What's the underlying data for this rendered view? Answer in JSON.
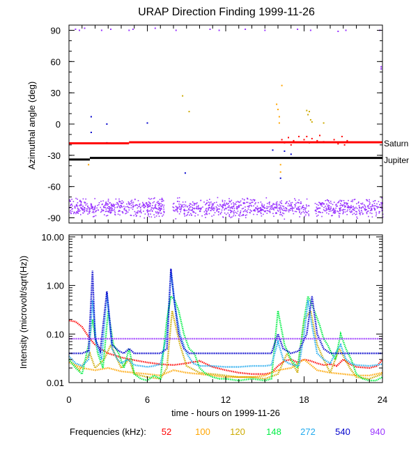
{
  "chart_data": [
    {
      "type": "scatter",
      "title": "URAP Direction Finding  1999-11-26",
      "ylabel": "Azimuthal angle (deg)",
      "xlabel": "",
      "xlim": [
        0,
        24
      ],
      "ylim": [
        -95,
        95
      ],
      "yticks": [
        90,
        60,
        30,
        0,
        -30,
        -60,
        -90
      ],
      "reference_lines": [
        {
          "name": "Saturn",
          "color": "#ff0000",
          "segments": [
            [
              0,
              4.6,
              -18.5
            ],
            [
              4.6,
              24,
              -17.5
            ]
          ]
        },
        {
          "name": "Jupiter",
          "color": "#000000",
          "segments": [
            [
              0,
              1.6,
              -34
            ],
            [
              1.6,
              24,
              -32.5
            ]
          ]
        }
      ],
      "series": [
        {
          "name": "940 kHz cluster (-70 to -93 deg)",
          "color": "#9933ff",
          "x_range": [
            0,
            24
          ],
          "y_range": [
            -93,
            -70
          ],
          "gaps": [
            [
              7.3,
              7.9
            ],
            [
              18.4,
              18.8
            ]
          ]
        },
        {
          "name": "940 kHz near +90 deg",
          "color": "#9933ff",
          "points": [
            [
              0.5,
              91
            ],
            [
              0.8,
              90
            ],
            [
              1.2,
              92
            ],
            [
              2.5,
              90
            ],
            [
              3.2,
              91
            ],
            [
              4.6,
              90
            ],
            [
              4.9,
              91
            ],
            [
              6.6,
              92
            ],
            [
              8.2,
              90
            ],
            [
              10.8,
              91
            ],
            [
              11.5,
              90
            ],
            [
              13.5,
              91
            ],
            [
              15.0,
              90
            ],
            [
              17.5,
              91
            ],
            [
              18.5,
              90
            ],
            [
              20.6,
              89
            ],
            [
              21.2,
              90
            ],
            [
              23.8,
              90
            ],
            [
              23.9,
              55
            ],
            [
              23.9,
              53
            ]
          ]
        },
        {
          "name": "52 kHz",
          "color": "#ff0000",
          "points": [
            [
              16.3,
              -15
            ],
            [
              16.5,
              -18
            ],
            [
              16.8,
              -13
            ],
            [
              17.0,
              -20
            ],
            [
              17.2,
              -16
            ],
            [
              17.6,
              -12
            ],
            [
              18.0,
              -15
            ],
            [
              18.2,
              -12
            ],
            [
              18.4,
              -18
            ],
            [
              18.6,
              -14
            ],
            [
              19.0,
              -16
            ],
            [
              19.2,
              -11
            ],
            [
              19.5,
              -17
            ],
            [
              20.3,
              -15
            ],
            [
              20.6,
              -19
            ],
            [
              20.9,
              -12
            ],
            [
              21.1,
              -20
            ],
            [
              21.3,
              -16
            ]
          ]
        },
        {
          "name": "100 kHz",
          "color": "#ffa500",
          "points": [
            [
              15.9,
              19
            ],
            [
              16.0,
              14
            ],
            [
              16.1,
              7
            ],
            [
              16.3,
              37
            ],
            [
              16.1,
              1
            ],
            [
              1.5,
              -39
            ],
            [
              16.2,
              -39
            ],
            [
              16.2,
              -46
            ]
          ]
        },
        {
          "name": "120 kHz",
          "color": "#ccaa00",
          "points": [
            [
              8.7,
              27
            ],
            [
              9.2,
              12
            ],
            [
              18.2,
              13
            ],
            [
              18.3,
              9
            ],
            [
              18.4,
              12
            ],
            [
              18.5,
              4
            ],
            [
              18.6,
              2
            ],
            [
              19.5,
              1
            ]
          ]
        },
        {
          "name": "540 kHz",
          "color": "#0000cc",
          "points": [
            [
              1.7,
              7
            ],
            [
              1.7,
              -8
            ],
            [
              2.9,
              0
            ],
            [
              2.9,
              -18
            ],
            [
              8.9,
              -47
            ],
            [
              6.0,
              1
            ],
            [
              15.6,
              -25
            ],
            [
              16.2,
              -52
            ],
            [
              16.5,
              -26
            ],
            [
              17.0,
              -29
            ]
          ]
        }
      ]
    },
    {
      "type": "line",
      "title": "",
      "xlabel": "time - hours on 1999-11-26",
      "ylabel": "Intensity (microvolt/sqrt(Hz))",
      "scale": "log",
      "xlim": [
        0,
        24
      ],
      "ylim": [
        0.01,
        11
      ],
      "xticks": [
        0,
        6,
        12,
        18,
        24
      ],
      "ytick_labels": [
        "10.00",
        "1.00",
        "0.10",
        "0.01"
      ],
      "yticks": [
        10,
        1,
        0.1,
        0.01
      ],
      "series": [
        {
          "name": "52",
          "color": "#ff0000",
          "x": [
            0,
            0.5,
            1,
            1.6,
            2,
            2.5,
            3,
            4,
            5,
            6,
            7,
            8,
            9,
            10,
            11,
            12,
            13,
            14,
            15,
            15.5,
            16,
            16.5,
            17,
            17.5,
            18,
            18.5,
            19,
            19.5,
            20,
            20.5,
            21,
            21.5,
            22,
            23,
            23.6,
            24
          ],
          "values": [
            0.19,
            0.18,
            0.14,
            0.08,
            0.06,
            0.048,
            0.04,
            0.033,
            0.029,
            0.026,
            0.024,
            0.023,
            0.025,
            0.028,
            0.021,
            0.018,
            0.016,
            0.015,
            0.015,
            0.016,
            0.022,
            0.028,
            0.03,
            0.026,
            0.03,
            0.028,
            0.025,
            0.023,
            0.024,
            0.022,
            0.03,
            0.024,
            0.021,
            0.02,
            0.022,
            0.03
          ]
        },
        {
          "name": "100",
          "color": "#ffa500",
          "x": [
            0,
            1,
            2,
            3,
            4,
            5,
            6,
            7,
            8,
            9,
            10,
            11,
            12,
            13,
            14,
            15,
            16,
            17,
            18,
            19,
            20,
            21,
            22,
            23,
            24
          ],
          "values": [
            0.026,
            0.02,
            0.018,
            0.02,
            0.017,
            0.016,
            0.015,
            0.014,
            0.018,
            0.016,
            0.015,
            0.014,
            0.013,
            0.013,
            0.013,
            0.014,
            0.018,
            0.02,
            0.03,
            0.018,
            0.016,
            0.015,
            0.014,
            0.014,
            0.016
          ]
        },
        {
          "name": "120",
          "color": "#ccaa00",
          "x": [
            0,
            0.8,
            1.6,
            2,
            2.7,
            3.2,
            4,
            4.6,
            5,
            6,
            7,
            7.5,
            7.9,
            8.5,
            9,
            10,
            11,
            12,
            13,
            14,
            15,
            16,
            16.7,
            17.5,
            18,
            18.5,
            19,
            19.5,
            20,
            20.7,
            21.5,
            22,
            23,
            24
          ],
          "values": [
            0.03,
            0.018,
            0.04,
            0.02,
            0.03,
            0.06,
            0.02,
            0.03,
            0.015,
            0.013,
            0.012,
            0.02,
            0.3,
            0.06,
            0.022,
            0.016,
            0.015,
            0.014,
            0.013,
            0.013,
            0.012,
            0.015,
            0.04,
            0.016,
            0.2,
            0.3,
            0.06,
            0.03,
            0.016,
            0.05,
            0.02,
            0.013,
            0.012,
            0.015
          ]
        },
        {
          "name": "148",
          "color": "#00ee44",
          "x": [
            0,
            0.5,
            1,
            1.5,
            1.8,
            2.2,
            2.6,
            3,
            3.4,
            3.8,
            4.2,
            4.6,
            5,
            5.5,
            6,
            6.5,
            7,
            7.5,
            7.8,
            8.1,
            8.4,
            8.8,
            9.2,
            9.6,
            10,
            10.5,
            11,
            11.5,
            12,
            13,
            14,
            15,
            15.5,
            16,
            16.5,
            17,
            17.5,
            18,
            18.3,
            18.6,
            18.9,
            19.2,
            19.5,
            19.8,
            20.1,
            20.4,
            20.8,
            21.2,
            21.6,
            22,
            22.5,
            23,
            23.5,
            24
          ],
          "values": [
            0.03,
            0.02,
            0.015,
            0.06,
            0.2,
            0.04,
            0.02,
            0.3,
            0.06,
            0.04,
            0.02,
            0.05,
            0.015,
            0.012,
            0.011,
            0.014,
            0.012,
            0.2,
            0.6,
            0.5,
            0.3,
            0.1,
            0.05,
            0.04,
            0.02,
            0.015,
            0.013,
            0.012,
            0.012,
            0.011,
            0.012,
            0.011,
            0.012,
            0.3,
            0.06,
            0.03,
            0.02,
            0.2,
            0.6,
            0.4,
            0.25,
            0.15,
            0.08,
            0.06,
            0.04,
            0.03,
            0.1,
            0.05,
            0.03,
            0.015,
            0.012,
            0.011,
            0.011,
            0.013
          ]
        },
        {
          "name": "272",
          "color": "#22aaee",
          "x": [
            0,
            0.5,
            1,
            1.5,
            1.8,
            2.1,
            2.5,
            2.9,
            3.3,
            3.7,
            4,
            4.5,
            5,
            5.5,
            6,
            6.5,
            7,
            7.5,
            7.8,
            8.1,
            8.5,
            9,
            9.5,
            10,
            11,
            12,
            13,
            14,
            15,
            15.5,
            16,
            16.4,
            16.8,
            17.2,
            17.6,
            18,
            18.3,
            18.6,
            19,
            19.5,
            20,
            20.4,
            20.8,
            21.2,
            21.6,
            22,
            23,
            24
          ],
          "values": [
            0.035,
            0.025,
            0.022,
            0.03,
            0.5,
            0.06,
            0.03,
            0.7,
            0.05,
            0.03,
            0.025,
            0.03,
            0.023,
            0.022,
            0.021,
            0.022,
            0.024,
            0.1,
            1.8,
            0.4,
            0.1,
            0.04,
            0.025,
            0.022,
            0.022,
            0.021,
            0.021,
            0.022,
            0.022,
            0.023,
            0.07,
            0.03,
            0.025,
            0.023,
            0.022,
            0.1,
            0.5,
            0.15,
            0.04,
            0.03,
            0.025,
            0.04,
            0.06,
            0.03,
            0.025,
            0.023,
            0.022,
            0.024
          ]
        },
        {
          "name": "540",
          "color": "#0000cc",
          "x": [
            0,
            0.5,
            1,
            1.5,
            1.8,
            2,
            2.4,
            2.9,
            3.3,
            3.8,
            4.2,
            4.6,
            5,
            6,
            7,
            7.5,
            7.8,
            8.1,
            8.4,
            8.8,
            9.2,
            10,
            12,
            14,
            15.5,
            16,
            16.4,
            17,
            17.6,
            18.2,
            18.6,
            19,
            19.5,
            20,
            21,
            22,
            23,
            24
          ],
          "values": [
            0.04,
            0.04,
            0.04,
            0.045,
            2.0,
            0.08,
            0.045,
            0.75,
            0.06,
            0.045,
            0.04,
            0.05,
            0.04,
            0.04,
            0.04,
            0.05,
            2.2,
            0.4,
            0.1,
            0.05,
            0.04,
            0.04,
            0.04,
            0.04,
            0.04,
            0.1,
            0.05,
            0.04,
            0.045,
            0.1,
            0.6,
            0.1,
            0.05,
            0.04,
            0.04,
            0.04,
            0.04,
            0.04
          ]
        },
        {
          "name": "940",
          "color": "#9933ff",
          "x": [
            0,
            2,
            4,
            6,
            8,
            10,
            12,
            14,
            16,
            18,
            20,
            22,
            24
          ],
          "values": [
            0.08,
            0.08,
            0.08,
            0.08,
            0.08,
            0.08,
            0.08,
            0.08,
            0.08,
            0.08,
            0.08,
            0.08,
            0.08
          ]
        }
      ]
    }
  ],
  "legend": {
    "label": "Frequencies (kHz):",
    "items": [
      {
        "text": "52",
        "color": "#ff0000"
      },
      {
        "text": "100",
        "color": "#ffa500"
      },
      {
        "text": "120",
        "color": "#ccaa00"
      },
      {
        "text": "148",
        "color": "#00ee44"
      },
      {
        "text": "272",
        "color": "#22aaee"
      },
      {
        "text": "540",
        "color": "#0000cc"
      },
      {
        "text": "940",
        "color": "#9933ff"
      }
    ]
  }
}
